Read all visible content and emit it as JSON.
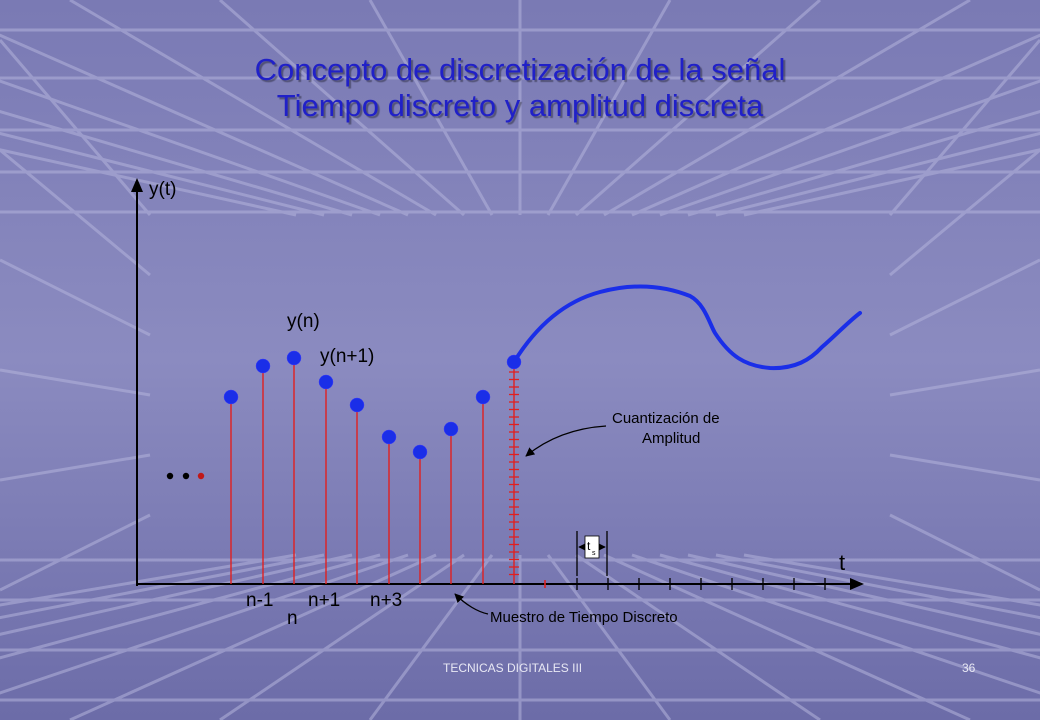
{
  "slide": {
    "title_line1": "Concepto de discretización de la señal",
    "title_line2": "Tiempo discreto y amplitud discreta",
    "footer_left": "TECNICAS DIGITALES III",
    "page_number": "36"
  },
  "diagram": {
    "y_axis_label": "y(t)",
    "t_axis_label": "t",
    "sample_label_top": "y(n)",
    "sample_label_next": "y(n+1)",
    "tick_n_minus_1": "n-1",
    "tick_n": "n",
    "tick_n_plus_1": "n+1",
    "tick_n_plus_3": "n+3",
    "ellipsis": "• • •",
    "quantization_label_line1": "Cuantización de",
    "quantization_label_line2": "Amplitud",
    "sampling_label": "Muestro de Tiempo Discreto",
    "ts_label_main": "t",
    "ts_label_sub": "s"
  },
  "colors": {
    "title": "#2020c8",
    "signal": "#1a2ee8",
    "sample_point": "#1a2ee8",
    "stem": "#e02020",
    "axis": "#000000"
  }
}
